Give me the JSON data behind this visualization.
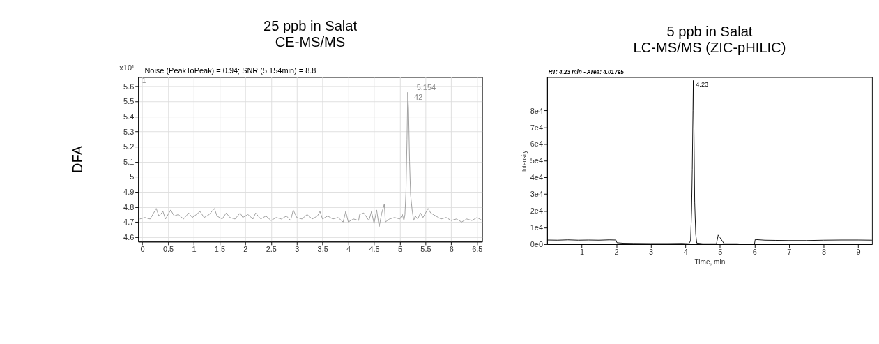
{
  "chart_data": [
    {
      "type": "line",
      "title": "25 ppb in Salat",
      "subtitle": "CE-MS/MS",
      "ylabel": "x10¹",
      "grid": true,
      "marker": "none",
      "line_style": "solid",
      "xlim": [
        -0.08,
        6.6
      ],
      "ylim": [
        4.57,
        5.66
      ],
      "xticks": [
        0,
        0.5,
        1,
        1.5,
        2,
        2.5,
        3,
        3.5,
        4,
        4.5,
        5,
        5.5,
        6,
        6.5
      ],
      "yticks": [
        4.6,
        4.7,
        4.8,
        4.9,
        5,
        5.1,
        5.2,
        5.3,
        5.4,
        5.5,
        5.6
      ],
      "annotations": [
        "DFA",
        "Noise (PeakToPeak) = 0.94; SNR (5.154min) = 8.8",
        "1",
        "5.154",
        "42"
      ],
      "series": [
        {
          "color": "#999999",
          "x": [
            -0.05,
            0.05,
            0.15,
            0.22,
            0.27,
            0.32,
            0.4,
            0.45,
            0.55,
            0.62,
            0.7,
            0.8,
            0.9,
            0.97,
            1.05,
            1.12,
            1.2,
            1.3,
            1.4,
            1.45,
            1.55,
            1.63,
            1.7,
            1.8,
            1.9,
            1.95,
            2.05,
            2.15,
            2.2,
            2.3,
            2.4,
            2.5,
            2.6,
            2.7,
            2.8,
            2.88,
            2.93,
            3.0,
            3.1,
            3.2,
            3.3,
            3.4,
            3.45,
            3.5,
            3.6,
            3.7,
            3.8,
            3.9,
            3.95,
            4.0,
            4.1,
            4.2,
            4.22,
            4.3,
            4.4,
            4.45,
            4.5,
            4.55,
            4.6,
            4.65,
            4.7,
            4.72,
            4.8,
            4.9,
            5.0,
            5.05,
            5.08,
            5.1,
            5.12,
            5.14,
            5.154,
            5.17,
            5.19,
            5.21,
            5.24,
            5.27,
            5.3,
            5.35,
            5.4,
            5.45,
            5.55,
            5.6,
            5.7,
            5.8,
            5.9,
            6.0,
            6.1,
            6.2,
            6.3,
            6.4,
            6.5,
            6.6
          ],
          "values": [
            4.72,
            4.73,
            4.72,
            4.76,
            4.79,
            4.74,
            4.77,
            4.72,
            4.78,
            4.74,
            4.75,
            4.72,
            4.76,
            4.73,
            4.75,
            4.77,
            4.73,
            4.75,
            4.79,
            4.74,
            4.72,
            4.76,
            4.73,
            4.72,
            4.76,
            4.73,
            4.75,
            4.72,
            4.76,
            4.72,
            4.74,
            4.71,
            4.73,
            4.72,
            4.74,
            4.71,
            4.78,
            4.73,
            4.72,
            4.75,
            4.72,
            4.74,
            4.77,
            4.72,
            4.74,
            4.72,
            4.73,
            4.7,
            4.77,
            4.7,
            4.72,
            4.71,
            4.75,
            4.76,
            4.71,
            4.77,
            4.69,
            4.78,
            4.67,
            4.76,
            4.82,
            4.7,
            4.72,
            4.73,
            4.72,
            4.75,
            4.71,
            4.75,
            4.9,
            5.25,
            5.56,
            5.45,
            5.1,
            4.88,
            4.78,
            4.71,
            4.74,
            4.72,
            4.76,
            4.73,
            4.79,
            4.76,
            4.74,
            4.72,
            4.73,
            4.71,
            4.72,
            4.7,
            4.72,
            4.71,
            4.73,
            4.71
          ]
        }
      ]
    },
    {
      "type": "line",
      "title": "5 ppb in Salat",
      "subtitle": "LC-MS/MS (ZIC-pHILIC)",
      "xlabel": "Time, min",
      "ylabel": "Intensity",
      "grid": false,
      "marker": "none",
      "line_style": "solid",
      "xlim": [
        0,
        9.4
      ],
      "ylim": [
        0,
        100000
      ],
      "xticks": [
        1,
        2,
        3,
        4,
        5,
        6,
        7,
        8,
        9
      ],
      "yticks": [
        {
          "value": 0,
          "label": "0e0"
        },
        {
          "value": 10000,
          "label": "1e4"
        },
        {
          "value": 20000,
          "label": "2e4"
        },
        {
          "value": 30000,
          "label": "3e4"
        },
        {
          "value": 40000,
          "label": "4e4"
        },
        {
          "value": 50000,
          "label": "5e4"
        },
        {
          "value": 60000,
          "label": "6e4"
        },
        {
          "value": 70000,
          "label": "7e4"
        },
        {
          "value": 80000,
          "label": "8e4"
        }
      ],
      "annotations": [
        "RT: 4.23 min - Area: 4.017e5",
        "4.23"
      ],
      "series": [
        {
          "color": "#000000",
          "x": [
            0.0,
            0.3,
            0.6,
            0.9,
            1.2,
            1.5,
            1.8,
            1.99,
            2.02,
            2.2,
            2.5,
            3.0,
            3.5,
            3.9,
            4.1,
            4.15,
            4.18,
            4.2,
            4.22,
            4.23,
            4.25,
            4.27,
            4.3,
            4.33,
            4.5,
            4.9,
            4.95,
            5.0,
            5.05,
            5.12,
            5.5,
            5.7,
            6.0,
            6.02,
            6.3,
            6.6,
            7.0,
            7.5,
            8.0,
            8.5,
            9.0,
            9.4
          ],
          "values": [
            2500,
            2400,
            2600,
            2400,
            2500,
            2400,
            2600,
            2500,
            900,
            600,
            500,
            400,
            400,
            500,
            300,
            2000,
            20000,
            45000,
            80000,
            98000,
            65000,
            25000,
            6000,
            700,
            300,
            300,
            5500,
            4000,
            2500,
            300,
            300,
            0,
            100,
            2800,
            2400,
            2300,
            2200,
            2200,
            2400,
            2500,
            2500,
            2400
          ]
        }
      ]
    }
  ]
}
